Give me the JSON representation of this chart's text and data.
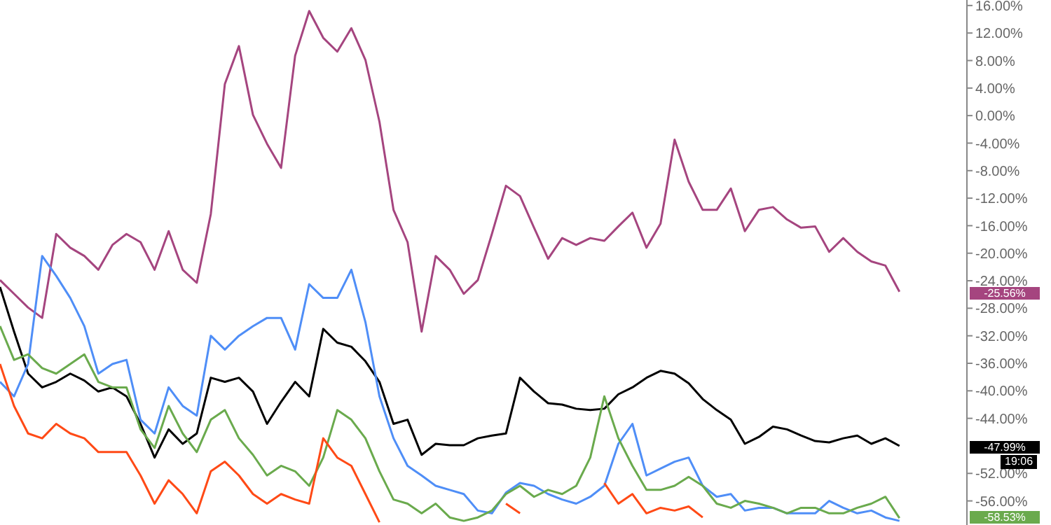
{
  "chart_data": {
    "type": "line",
    "categories": [
      null,
      null,
      null,
      null,
      null,
      null,
      null,
      null,
      null,
      null,
      null,
      null,
      null,
      null,
      null,
      null,
      null,
      null,
      null,
      null,
      null,
      null,
      null,
      null,
      null,
      null,
      null,
      null,
      null,
      null,
      null,
      null,
      null,
      null,
      null,
      null,
      null,
      null,
      null,
      null,
      null,
      null,
      null,
      null,
      null,
      null,
      null,
      null,
      null,
      null,
      null,
      null,
      null,
      null,
      null,
      null,
      null,
      null,
      null,
      null,
      null,
      null,
      null,
      null,
      null
    ],
    "series": [
      {
        "color": "#a5457f",
        "values": [
          -23.9,
          -25.9,
          -27.9,
          -29.4,
          -17.2,
          -19.2,
          -20.4,
          -22.4,
          -18.8,
          -17.2,
          -18.4,
          -22.4,
          -16.8,
          -22.4,
          -24.3,
          -14.3,
          4.6,
          10.1,
          0.1,
          -4.1,
          -7.6,
          8.7,
          15.2,
          11.3,
          9.3,
          12.7,
          8.1,
          -0.9,
          -13.7,
          -18.4,
          -31.4,
          -20.4,
          -22.4,
          -25.9,
          -23.9,
          -17.2,
          -10.2,
          -11.7,
          -16.3,
          -20.8,
          -17.8,
          -18.8,
          -17.8,
          -18.2,
          -16.1,
          -14.1,
          -19.2,
          -15.7,
          -3.5,
          -9.6,
          -13.7,
          -13.7,
          -10.6,
          -16.8,
          -13.7,
          -13.3,
          -15.1,
          -16.3,
          -16.1,
          -19.8,
          -17.8,
          -19.8,
          -21.2,
          -21.8,
          -25.6
        ]
      },
      {
        "color": "#000000",
        "values": [
          -24.9,
          -31.4,
          -37.5,
          -39.5,
          -38.7,
          -37.5,
          -38.5,
          -40.1,
          -39.5,
          -40.8,
          -44.8,
          -49.7,
          -45.6,
          -47.7,
          -46.2,
          -38.1,
          -38.7,
          -38.1,
          -40.1,
          -44.8,
          -41.6,
          -38.7,
          -40.8,
          -31.0,
          -33.0,
          -33.6,
          -35.7,
          -38.7,
          -44.8,
          -44.2,
          -49.3,
          -47.7,
          -47.9,
          -47.9,
          -46.9,
          -46.5,
          -46.2,
          -38.1,
          -40.1,
          -41.8,
          -42.0,
          -42.6,
          -42.8,
          -42.6,
          -40.5,
          -39.5,
          -38.1,
          -37.1,
          -37.5,
          -38.9,
          -41.2,
          -42.8,
          -44.2,
          -47.7,
          -46.7,
          -45.2,
          -45.6,
          -46.5,
          -47.3,
          -47.5,
          -46.9,
          -46.5,
          -47.7,
          -46.9,
          -48.0
        ]
      },
      {
        "color": "#4f8ef7",
        "values": [
          -38.7,
          -40.8,
          -36.1,
          -20.4,
          -23.3,
          -26.5,
          -30.6,
          -37.5,
          -36.1,
          -35.5,
          -44.2,
          -46.2,
          -39.5,
          -42.2,
          -43.6,
          -32.0,
          -34.0,
          -32.0,
          -30.6,
          -29.4,
          -29.4,
          -34.0,
          -24.5,
          -26.5,
          -26.5,
          -22.4,
          -30.0,
          -40.8,
          -46.9,
          -50.9,
          -52.3,
          -53.8,
          -54.4,
          -55.0,
          -57.4,
          -57.8,
          -54.8,
          -53.4,
          -53.8,
          -55.0,
          -55.8,
          -56.4,
          -55.4,
          -53.8,
          -47.7,
          -44.8,
          -52.3,
          -51.3,
          -50.3,
          -49.7,
          -53.8,
          -55.4,
          -55.0,
          -57.4,
          -57.0,
          -57.0,
          -57.8,
          -57.8,
          -57.8,
          -56.0,
          -57.0,
          -57.8,
          -57.4,
          -58.4,
          -58.9
        ]
      },
      {
        "color": "#6aaa4d",
        "values": [
          -30.6,
          -35.5,
          -34.7,
          -36.7,
          -37.5,
          -36.1,
          -34.7,
          -38.7,
          -39.5,
          -39.5,
          -45.6,
          -48.3,
          -42.2,
          -46.2,
          -48.9,
          -44.2,
          -42.8,
          -46.9,
          -49.3,
          -52.3,
          -50.9,
          -51.7,
          -53.8,
          -49.7,
          -42.8,
          -44.2,
          -46.9,
          -51.7,
          -55.8,
          -56.4,
          -57.8,
          -56.4,
          -58.4,
          -58.9,
          -58.4,
          -57.4,
          -55.0,
          -53.8,
          -55.4,
          -54.4,
          -55.0,
          -53.8,
          -49.7,
          -40.8,
          -46.9,
          -50.9,
          -54.4,
          -54.4,
          -53.8,
          -52.5,
          -53.8,
          -56.4,
          -57.0,
          -56.0,
          -56.4,
          -57.0,
          -57.8,
          -57.0,
          -57.0,
          -57.8,
          -57.8,
          -57.0,
          -56.4,
          -55.4,
          -58.5
        ]
      },
      {
        "color": "#ff4a16",
        "values": [
          -36.1,
          -42.2,
          -46.2,
          -46.9,
          -44.8,
          -46.2,
          -46.9,
          -48.9,
          -48.9,
          -48.9,
          -52.3,
          -56.4,
          -53.0,
          -55.0,
          -57.8,
          -51.7,
          -50.3,
          -52.3,
          -55.0,
          -56.4,
          -55.0,
          -55.8,
          -56.4,
          -46.9,
          -49.7,
          -50.9,
          -55.0,
          -59.1,
          null,
          null,
          null,
          null,
          null,
          null,
          null,
          null,
          -56.4,
          -57.8,
          null,
          null,
          null,
          null,
          null,
          -53.4,
          -56.4,
          -55.0,
          -57.8,
          -57.0,
          -57.4,
          -56.8,
          -58.4,
          null,
          null,
          null,
          null,
          null,
          null,
          null,
          null,
          null,
          null,
          null,
          null,
          null,
          null
        ]
      }
    ],
    "ylim": [
      -59.5,
      16.8
    ],
    "yticks": [
      {
        "value": 16,
        "label": "16.00%"
      },
      {
        "value": 12,
        "label": "12.00%"
      },
      {
        "value": 8,
        "label": "8.00%"
      },
      {
        "value": 4,
        "label": "4.00%"
      },
      {
        "value": 0,
        "label": "0.00%"
      },
      {
        "value": -4,
        "label": "-4.00%"
      },
      {
        "value": -8,
        "label": "-8.00%"
      },
      {
        "value": -12,
        "label": "-12.00%"
      },
      {
        "value": -16,
        "label": "-16.00%"
      },
      {
        "value": -20,
        "label": "-20.00%"
      },
      {
        "value": -24,
        "label": "-24.00%"
      },
      {
        "value": -28,
        "label": "-28.00%"
      },
      {
        "value": -32,
        "label": "-32.00%"
      },
      {
        "value": -36,
        "label": "-36.00%"
      },
      {
        "value": -40,
        "label": "-40.00%"
      },
      {
        "value": -44,
        "label": "-44.00%"
      },
      {
        "value": -52,
        "label": "-52.00%"
      },
      {
        "value": -56,
        "label": "-56.00%"
      }
    ],
    "tick_labels": "y",
    "grid": false,
    "legend": false,
    "marker": "none",
    "line_style": "solid",
    "annotations": [
      "-25.56%",
      "-47.99%",
      "19:06",
      "-58.53%"
    ]
  }
}
